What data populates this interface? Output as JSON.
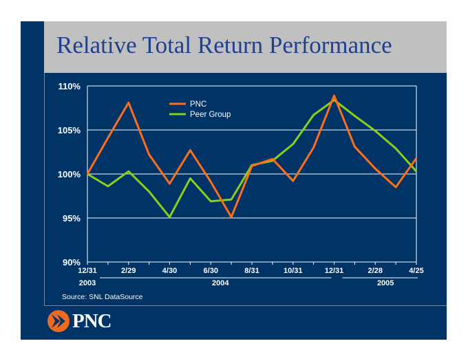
{
  "title": "Relative Total Return Performance",
  "source": "Source: SNL DataSource",
  "logo": {
    "text": "PNC",
    "icon": "pnc-chevron-icon",
    "color": "#f26a21"
  },
  "colors": {
    "background": "#003366",
    "title_bar": "#c0c0c0",
    "title_text": "#1f3f8f",
    "pnc": "#ff6f1a",
    "peer": "#8ccf1a"
  },
  "chart_data": {
    "type": "line",
    "title": "Relative Total Return Performance",
    "ylim": [
      90,
      110
    ],
    "yticks": [
      "110%",
      "105%",
      "100%",
      "95%",
      "90%"
    ],
    "ytick_values": [
      110,
      105,
      100,
      95,
      90
    ],
    "x_tick_labels": [
      "12/31",
      "2/29",
      "4/30",
      "6/30",
      "8/31",
      "10/31",
      "12/31",
      "2/28",
      "4/25"
    ],
    "x_tick_indices": [
      0,
      2,
      4,
      6,
      8,
      10,
      12,
      14,
      16
    ],
    "x_year_labels": [
      "2003",
      "2004",
      "2005"
    ],
    "x": [
      "12/31/2003",
      "1/31/2004",
      "2/29/2004",
      "3/31/2004",
      "4/30/2004",
      "5/31/2004",
      "6/30/2004",
      "7/31/2004",
      "8/31/2004",
      "9/30/2004",
      "10/31/2004",
      "11/30/2004",
      "12/31/2004",
      "1/31/2005",
      "2/28/2005",
      "3/31/2005",
      "4/25/2005"
    ],
    "legend_position": "top-center",
    "grid": true,
    "series": [
      {
        "name": "PNC",
        "color": "#ff6f1a",
        "values": [
          100,
          104.1,
          108.1,
          102.2,
          98.9,
          102.7,
          99.1,
          95.1,
          100.9,
          101.7,
          99.2,
          103.0,
          108.9,
          103.1,
          100.6,
          98.5,
          101.8
        ]
      },
      {
        "name": "Peer Group",
        "color": "#8ccf1a",
        "values": [
          100,
          98.6,
          100.3,
          98.0,
          95.1,
          99.5,
          96.9,
          97.1,
          101.0,
          101.5,
          103.4,
          106.7,
          108.4,
          106.6,
          104.9,
          102.9,
          100.3
        ]
      }
    ]
  }
}
